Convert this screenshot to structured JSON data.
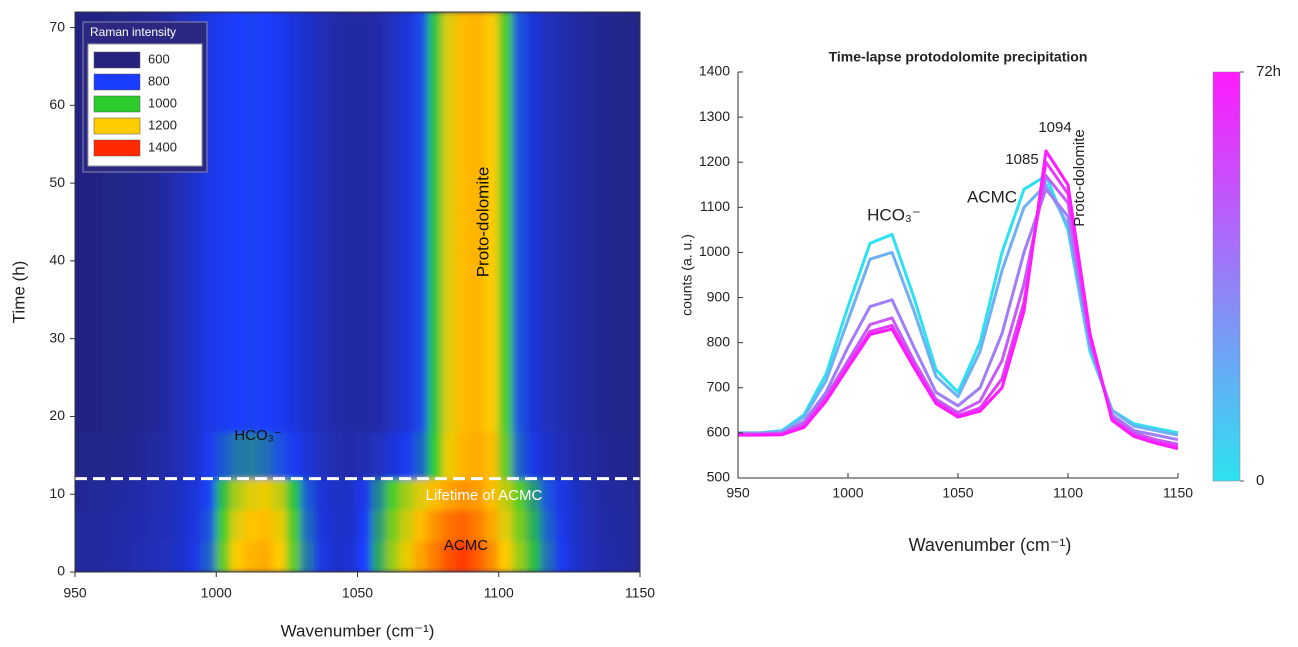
{
  "chart_data": [
    {
      "type": "heatmap",
      "xlabel": "Wavenumber (cm⁻¹)",
      "ylabel": "Time (h)",
      "xlim": [
        950,
        1150
      ],
      "xticks": [
        950,
        1000,
        1050,
        1100,
        1150
      ],
      "ylim": [
        0,
        72
      ],
      "yticks": [
        0,
        10,
        20,
        30,
        40,
        50,
        60,
        70
      ],
      "xbins": [
        950,
        955,
        960,
        965,
        970,
        975,
        980,
        985,
        990,
        995,
        1000,
        1005,
        1010,
        1015,
        1020,
        1025,
        1030,
        1035,
        1040,
        1045,
        1050,
        1055,
        1060,
        1065,
        1070,
        1075,
        1080,
        1085,
        1090,
        1095,
        1100,
        1105,
        1110,
        1115,
        1120,
        1125,
        1130,
        1135,
        1140,
        1145,
        1150
      ],
      "ybins": [
        0,
        4,
        8,
        12,
        18,
        72
      ],
      "z": [
        [
          650,
          650,
          660,
          670,
          680,
          690,
          700,
          720,
          760,
          850,
          1050,
          1200,
          1230,
          1240,
          1200,
          1050,
          880,
          760,
          720,
          730,
          800,
          950,
          1100,
          1180,
          1250,
          1300,
          1350,
          1380,
          1340,
          1280,
          1200,
          1100,
          980,
          870,
          780,
          720,
          690,
          670,
          660,
          650
        ],
        [
          650,
          650,
          660,
          665,
          675,
          685,
          695,
          715,
          750,
          830,
          1020,
          1170,
          1210,
          1220,
          1180,
          1030,
          860,
          750,
          715,
          720,
          790,
          930,
          1070,
          1150,
          1220,
          1270,
          1310,
          1330,
          1300,
          1250,
          1170,
          1070,
          960,
          850,
          770,
          715,
          685,
          665,
          655,
          650
        ],
        [
          640,
          645,
          650,
          660,
          670,
          680,
          690,
          710,
          740,
          810,
          980,
          1120,
          1170,
          1180,
          1140,
          990,
          840,
          740,
          710,
          715,
          770,
          900,
          1030,
          1110,
          1170,
          1220,
          1250,
          1270,
          1260,
          1220,
          1140,
          1040,
          930,
          830,
          760,
          710,
          680,
          660,
          650,
          645
        ],
        [
          620,
          620,
          625,
          630,
          640,
          650,
          670,
          690,
          720,
          780,
          840,
          880,
          890,
          870,
          830,
          780,
          740,
          700,
          680,
          670,
          680,
          700,
          740,
          780,
          850,
          1000,
          1180,
          1230,
          1240,
          1220,
          1050,
          850,
          760,
          720,
          690,
          670,
          650,
          640,
          630,
          625
        ],
        [
          610,
          610,
          615,
          620,
          630,
          640,
          660,
          690,
          720,
          760,
          780,
          800,
          810,
          800,
          780,
          750,
          720,
          690,
          670,
          660,
          660,
          670,
          700,
          740,
          820,
          990,
          1170,
          1220,
          1230,
          1200,
          1030,
          830,
          740,
          700,
          680,
          660,
          645,
          635,
          625,
          620
        ]
      ],
      "legend_title": "Raman intensity",
      "levels": [
        600,
        800,
        1000,
        1200,
        1400
      ],
      "level_colors": [
        "#25237c",
        "#1a3cff",
        "#2ccc2c",
        "#ffcc00",
        "#ff2a00"
      ],
      "hline": 12,
      "annotations": [
        "HCO₃⁻",
        "Proto-dolomite",
        "Lifetime of ACMC",
        "ACMC"
      ]
    },
    {
      "type": "line",
      "title": "Time-lapse protodolomite precipitation",
      "xlabel": "Wavenumber (cm⁻¹)",
      "ylabel": "counts (a. u.)",
      "xlim": [
        950,
        1150
      ],
      "xticks": [
        950,
        1000,
        1050,
        1100,
        1150
      ],
      "ylim": [
        500,
        1400
      ],
      "yticks": [
        500,
        600,
        700,
        800,
        900,
        1000,
        1100,
        1200,
        1300,
        1400
      ],
      "x": [
        950,
        960,
        970,
        980,
        990,
        1000,
        1010,
        1020,
        1030,
        1040,
        1050,
        1060,
        1070,
        1080,
        1090,
        1100,
        1110,
        1120,
        1130,
        1140,
        1150
      ],
      "series": [
        {
          "color": "#2de2f0",
          "values": [
            600,
            600,
            605,
            640,
            730,
            880,
            1020,
            1040,
            900,
            740,
            690,
            800,
            1000,
            1140,
            1170,
            1050,
            780,
            650,
            620,
            610,
            600
          ]
        },
        {
          "color": "#6fb0f3",
          "values": [
            600,
            600,
            603,
            635,
            715,
            850,
            985,
            1000,
            870,
            725,
            680,
            780,
            960,
            1100,
            1150,
            1060,
            790,
            650,
            615,
            605,
            595
          ]
        },
        {
          "color": "#a07ef5",
          "values": [
            598,
            598,
            600,
            625,
            690,
            790,
            880,
            895,
            790,
            690,
            660,
            700,
            820,
            1000,
            1140,
            1080,
            800,
            640,
            605,
            595,
            585
          ]
        },
        {
          "color": "#c85af7",
          "values": [
            597,
            597,
            598,
            620,
            680,
            760,
            840,
            855,
            760,
            675,
            645,
            670,
            760,
            930,
            1170,
            1110,
            810,
            635,
            600,
            585,
            575
          ]
        },
        {
          "color": "#e63cf9",
          "values": [
            596,
            596,
            597,
            615,
            675,
            750,
            825,
            838,
            750,
            668,
            638,
            655,
            720,
            890,
            1200,
            1130,
            815,
            630,
            595,
            580,
            570
          ]
        },
        {
          "color": "#ff1aff",
          "values": [
            595,
            595,
            596,
            612,
            670,
            745,
            818,
            830,
            745,
            665,
            635,
            648,
            700,
            870,
            1225,
            1150,
            820,
            628,
            592,
            577,
            565
          ]
        }
      ],
      "colorbar": {
        "clim": [
          0,
          72
        ],
        "ticks": [
          0,
          {
            "value": 72,
            "label": "72h"
          }
        ],
        "colors": [
          "#2de2f0",
          "#ff1aff"
        ]
      },
      "annotations": [
        "HCO₃⁻",
        "ACMC",
        "1085",
        "1094",
        "Proto-dolomite"
      ]
    }
  ]
}
